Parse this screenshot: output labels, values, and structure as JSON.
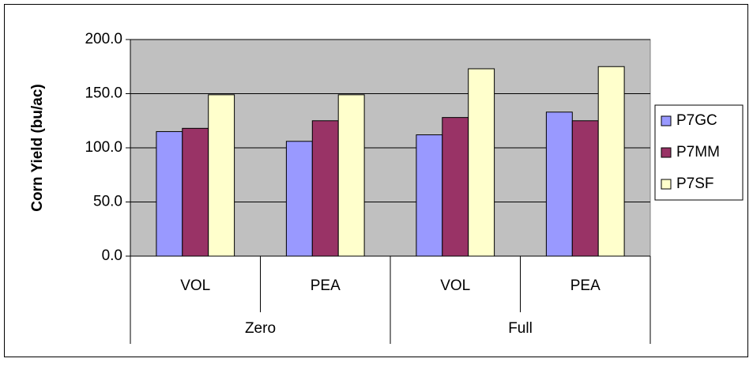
{
  "chart_data": {
    "type": "bar",
    "y_label": "Corn Yield (bu/ac)",
    "groups": [
      {
        "label": "Zero",
        "categories": [
          "VOL",
          "PEA"
        ]
      },
      {
        "label": "Full",
        "categories": [
          "VOL",
          "PEA"
        ]
      }
    ],
    "series": [
      {
        "name": "P7GC",
        "color": "#9999ff",
        "values": [
          115,
          106,
          112,
          133
        ]
      },
      {
        "name": "P7MM",
        "color": "#993366",
        "values": [
          118,
          125,
          128,
          125
        ]
      },
      {
        "name": "P7SF",
        "color": "#ffffcc",
        "values": [
          149,
          149,
          173,
          175
        ]
      }
    ],
    "ylim": [
      0,
      200
    ],
    "yticks": [
      {
        "value": 0,
        "label": "0.0"
      },
      {
        "value": 50,
        "label": "50.0"
      },
      {
        "value": 100,
        "label": "100.0"
      },
      {
        "value": 150,
        "label": "150.0"
      },
      {
        "value": 200,
        "label": "200.0"
      }
    ],
    "plot_background": "#c0c0c0",
    "legend": "right"
  }
}
